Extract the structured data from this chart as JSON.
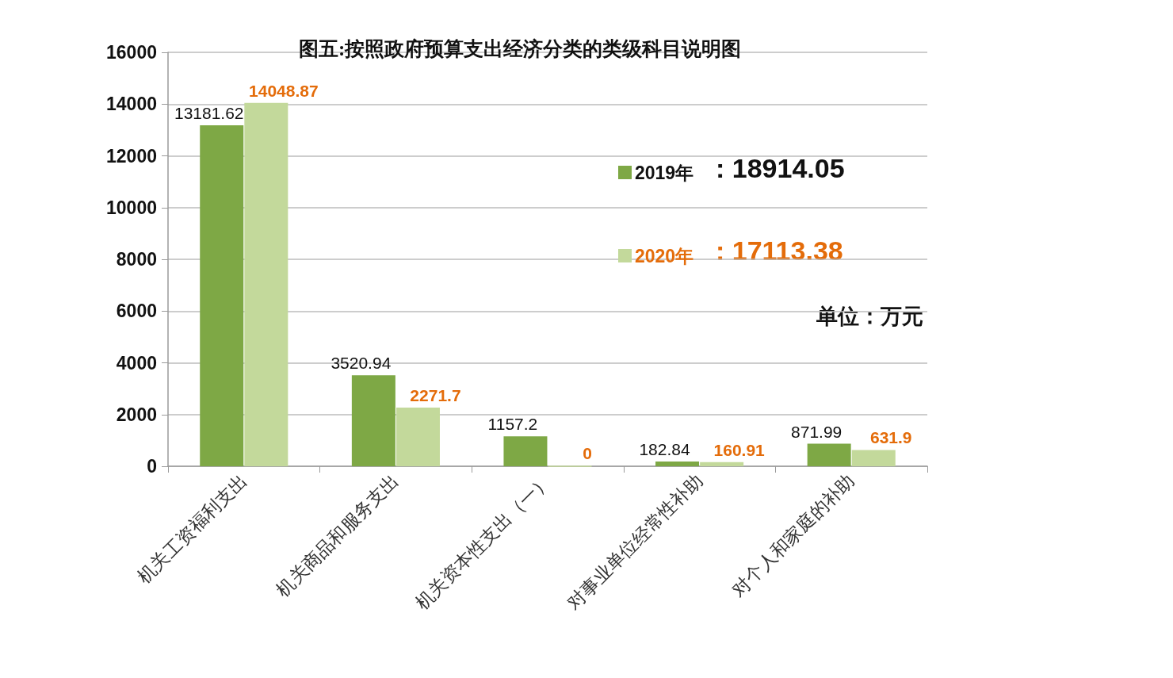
{
  "chart_data": {
    "type": "bar",
    "title": "图五:按照政府预算支出经济分类的类级科目说明图",
    "categories": [
      "机关工资福利支出",
      "机关商品和服务支出",
      "机关资本性支出（一）",
      "对事业单位经常性补助",
      "对个人和家庭的补助"
    ],
    "series": [
      {
        "name": "2019年",
        "color": "#7ea845",
        "values": [
          13181.62,
          3520.94,
          1157.2,
          182.84,
          871.99
        ]
      },
      {
        "name": "2020年",
        "color": "#c3d99b",
        "values": [
          14048.87,
          2271.7,
          0,
          160.91,
          631.9
        ]
      }
    ],
    "ylim": [
      0,
      16000
    ],
    "yticks": [
      0,
      2000,
      4000,
      6000,
      8000,
      10000,
      12000,
      14000,
      16000
    ],
    "grid": "y",
    "legend": "top right",
    "data_labels": true,
    "annotations": [
      ": 18914.05",
      ": 17113.38",
      "单位：万元"
    ]
  }
}
